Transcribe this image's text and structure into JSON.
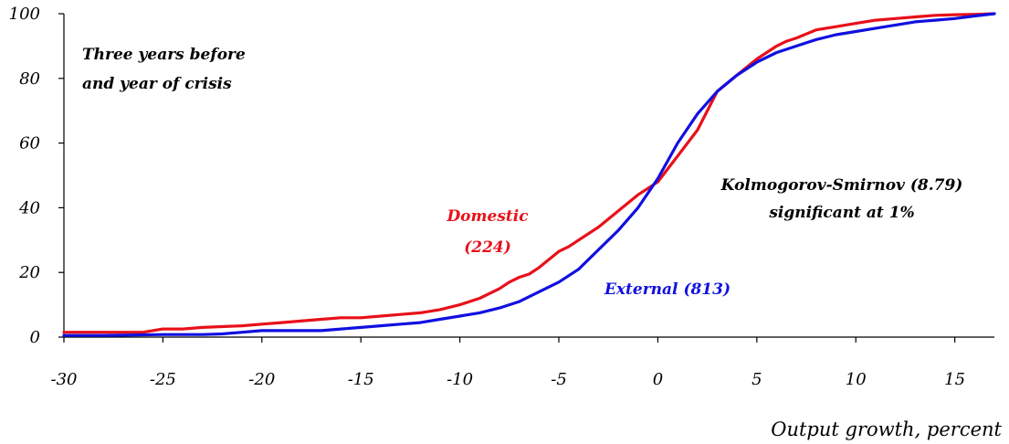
{
  "chart_data": {
    "type": "line",
    "xlabel": "Output growth, percent",
    "ylabel": "",
    "xlim": [
      -30,
      17
    ],
    "ylim": [
      0,
      100
    ],
    "x_ticks": [
      -30,
      -25,
      -20,
      -15,
      -10,
      -5,
      0,
      5,
      10,
      15
    ],
    "y_ticks": [
      0,
      20,
      40,
      60,
      80,
      100
    ],
    "grid": false,
    "annotations": {
      "period_line1": "Three years before",
      "period_line2": "and year of crisis",
      "ks_line1": "Kolmogorov-Smirnov (8.79)",
      "ks_line2": "significant at 1%",
      "domestic_line1": "Domestic",
      "domestic_line2": "(224)",
      "external_label": "External (813)"
    },
    "colors": {
      "domestic": "#e8101a",
      "external": "#1010e0"
    },
    "series": [
      {
        "id": "domestic",
        "x": [
          -30,
          -26,
          -25,
          -24,
          -23,
          -21,
          -20,
          -19,
          -17,
          -16,
          -15,
          -14,
          -13,
          -12,
          -11,
          -10,
          -9,
          -8,
          -7.5,
          -7,
          -6.5,
          -6,
          -5.5,
          -5,
          -4.5,
          -4,
          -3,
          -2,
          -1,
          -0.5,
          0,
          0.5,
          1,
          2,
          3,
          4,
          5,
          6,
          6.5,
          7,
          8,
          9,
          10,
          11,
          12,
          13,
          14,
          15,
          16,
          17
        ],
        "values": [
          1.5,
          1.5,
          2.5,
          2.5,
          3,
          3.5,
          4,
          4.5,
          5.5,
          6,
          6,
          6.5,
          7,
          7.5,
          8.5,
          10,
          12,
          15,
          17,
          18.5,
          19.5,
          21.5,
          24,
          26.5,
          28,
          30,
          34,
          39,
          44,
          46,
          48,
          52,
          56,
          64,
          76,
          81,
          86,
          90,
          91.5,
          92.5,
          95,
          96,
          97,
          98,
          98.5,
          99,
          99.5,
          99.7,
          99.8,
          100
        ]
      },
      {
        "id": "external",
        "x": [
          -30,
          -28,
          -25,
          -23,
          -22,
          -21,
          -20,
          -19,
          -18,
          -17,
          -16,
          -15,
          -14,
          -13,
          -12,
          -11,
          -10,
          -9,
          -8,
          -7,
          -6,
          -5,
          -4,
          -3,
          -2,
          -1,
          0,
          1,
          2,
          3,
          4,
          5,
          6,
          7,
          8,
          9,
          10,
          11,
          12,
          13,
          14,
          15,
          16,
          17
        ],
        "values": [
          0.5,
          0.5,
          0.8,
          0.8,
          1,
          1.5,
          2,
          2,
          2,
          2,
          2.5,
          3,
          3.5,
          4,
          4.5,
          5.5,
          6.5,
          7.5,
          9,
          11,
          14,
          17,
          21,
          27,
          33,
          40,
          49,
          60,
          69,
          76,
          81,
          85,
          88,
          90,
          92,
          93.5,
          94.5,
          95.5,
          96.5,
          97.5,
          98,
          98.5,
          99.3,
          100
        ]
      }
    ]
  }
}
